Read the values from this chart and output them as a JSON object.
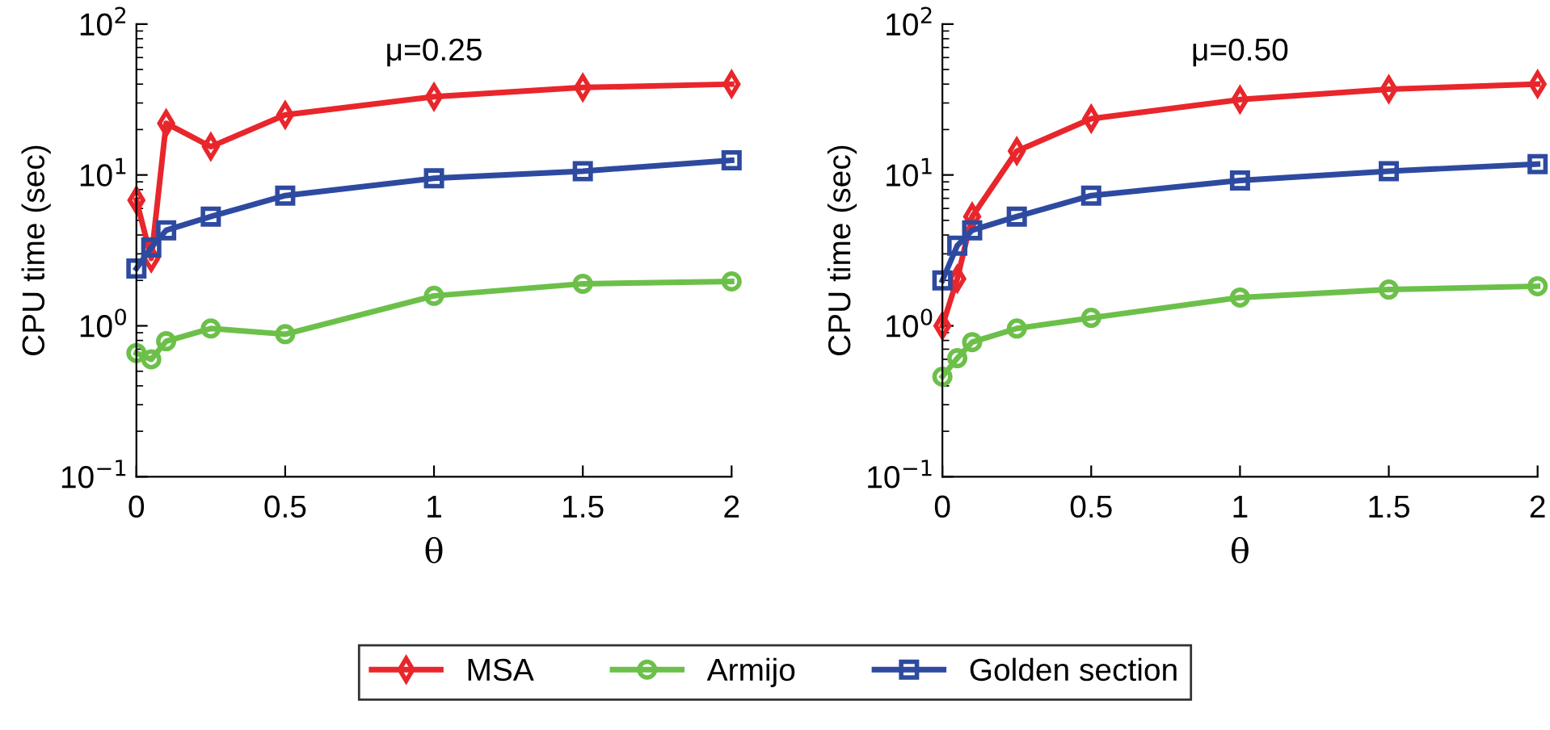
{
  "chart_data": [
    {
      "type": "line",
      "title": "μ=0.25",
      "xlabel": "θ",
      "ylabel": "CPU time (sec)",
      "log": "y",
      "line_style": "solid",
      "legend": "bottom",
      "grid": false,
      "x": [
        0,
        0.05,
        0.1,
        0.25,
        0.5,
        1,
        1.5,
        2
      ],
      "xlim": [
        0,
        2
      ],
      "xticks": [
        0,
        0.5,
        1,
        1.5,
        2
      ],
      "ylim": [
        0.1,
        100
      ],
      "yticks": [
        {
          "value": 0.1,
          "label": "10$^{−1}$"
        },
        {
          "value": 1,
          "label": "10$^{0}$"
        },
        {
          "value": 10,
          "label": "10$^{1}$"
        },
        {
          "value": 100,
          "label": "10$^{2}$"
        }
      ],
      "series": [
        {
          "name": "MSA",
          "color": "#e8262b",
          "marker": "diamond",
          "values": [
            6.8,
            2.8,
            22,
            15.4,
            25,
            33,
            38,
            40
          ]
        },
        {
          "name": "Armijo",
          "color": "#6cc04a",
          "marker": "circle",
          "values": [
            0.66,
            0.6,
            0.79,
            0.96,
            0.88,
            1.58,
            1.9,
            1.97
          ]
        },
        {
          "name": "Golden section",
          "color": "#2e4aa0",
          "marker": "square",
          "values": [
            2.4,
            3.3,
            4.3,
            5.3,
            7.3,
            9.5,
            10.6,
            12.5
          ]
        }
      ]
    },
    {
      "type": "line",
      "title": "μ=0.50",
      "xlabel": "θ",
      "ylabel": "CPU time (sec)",
      "log": "y",
      "line_style": "solid",
      "grid": false,
      "x": [
        0,
        0.05,
        0.1,
        0.25,
        0.5,
        1,
        1.5,
        2
      ],
      "xlim": [
        0,
        2
      ],
      "xticks": [
        0,
        0.5,
        1,
        1.5,
        2
      ],
      "ylim": [
        0.1,
        100
      ],
      "yticks": [
        {
          "value": 0.1,
          "label": "10$^{−1}$"
        },
        {
          "value": 1,
          "label": "10$^{0}$"
        },
        {
          "value": 10,
          "label": "10$^{1}$"
        },
        {
          "value": 100,
          "label": "10$^{2}$"
        }
      ],
      "series": [
        {
          "color": "#e8262b",
          "marker": "diamond",
          "values": [
            1.0,
            2.05,
            5.3,
            14.4,
            23.6,
            31.6,
            37,
            40
          ]
        },
        {
          "color": "#6cc04a",
          "marker": "circle",
          "values": [
            0.46,
            0.61,
            0.78,
            0.96,
            1.13,
            1.54,
            1.74,
            1.83
          ]
        },
        {
          "color": "#2e4aa0",
          "marker": "square",
          "values": [
            2.0,
            3.4,
            4.3,
            5.3,
            7.3,
            9.2,
            10.6,
            11.8
          ]
        }
      ]
    }
  ]
}
